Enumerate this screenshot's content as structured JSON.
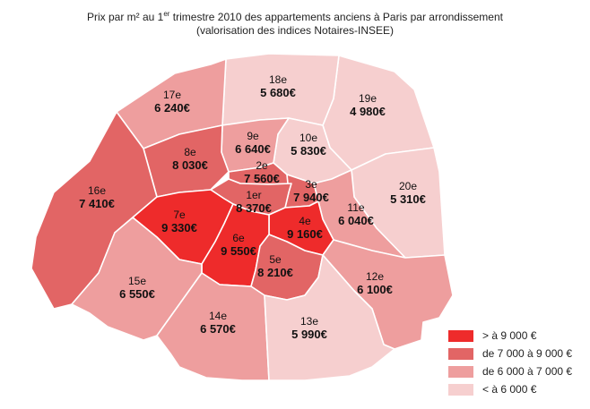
{
  "title": {
    "line1_prefix": "Prix par m² au 1",
    "line1_sup": "er",
    "line1_suffix": " trimestre 2010 des appartements anciens à Paris par arrondissement",
    "line2": "(valorisation des indices Notaires-INSEE)"
  },
  "colors": {
    "above_9000": "#ee2b2b",
    "7000_9000": "#e26565",
    "6000_7000": "#ee9e9e",
    "below_6000": "#f6cfcf",
    "border": "#ffffff"
  },
  "arrondissements": [
    {
      "id": "1",
      "name": "1er",
      "price": "8 370€",
      "class": "7000_9000"
    },
    {
      "id": "2",
      "name": "2e",
      "price": "7 560€",
      "class": "7000_9000"
    },
    {
      "id": "3",
      "name": "3e",
      "price": "7 940€",
      "class": "7000_9000"
    },
    {
      "id": "4",
      "name": "4e",
      "price": "9 160€",
      "class": "above_9000"
    },
    {
      "id": "5",
      "name": "5e",
      "price": "8 210€",
      "class": "7000_9000"
    },
    {
      "id": "6",
      "name": "6e",
      "price": "9 550€",
      "class": "above_9000"
    },
    {
      "id": "7",
      "name": "7e",
      "price": "9 330€",
      "class": "above_9000"
    },
    {
      "id": "8",
      "name": "8e",
      "price": "8 030€",
      "class": "7000_9000"
    },
    {
      "id": "9",
      "name": "9e",
      "price": "6 640€",
      "class": "6000_7000"
    },
    {
      "id": "10",
      "name": "10e",
      "price": "5 830€",
      "class": "below_6000"
    },
    {
      "id": "11",
      "name": "11e",
      "price": "6 040€",
      "class": "6000_7000"
    },
    {
      "id": "12",
      "name": "12e",
      "price": "6 100€",
      "class": "6000_7000"
    },
    {
      "id": "13",
      "name": "13e",
      "price": "5 990€",
      "class": "below_6000"
    },
    {
      "id": "14",
      "name": "14e",
      "price": "6 570€",
      "class": "6000_7000"
    },
    {
      "id": "15",
      "name": "15e",
      "price": "6 550€",
      "class": "6000_7000"
    },
    {
      "id": "16",
      "name": "16e",
      "price": "7 410€",
      "class": "7000_9000"
    },
    {
      "id": "17",
      "name": "17e",
      "price": "6 240€",
      "class": "6000_7000"
    },
    {
      "id": "18",
      "name": "18e",
      "price": "5 680€",
      "class": "below_6000"
    },
    {
      "id": "19",
      "name": "19e",
      "price": "4 980€",
      "class": "below_6000"
    },
    {
      "id": "20",
      "name": "20e",
      "price": "5 310€",
      "class": "below_6000"
    }
  ],
  "legend": [
    {
      "label": "> à 9 000 €",
      "class": "above_9000"
    },
    {
      "label": "de 7 000 à 9 000 €",
      "class": "7000_9000"
    },
    {
      "label": "de 6 000 à 7 000 €",
      "class": "6000_7000"
    },
    {
      "label": "< à 6 000 €",
      "class": "below_6000"
    }
  ]
}
